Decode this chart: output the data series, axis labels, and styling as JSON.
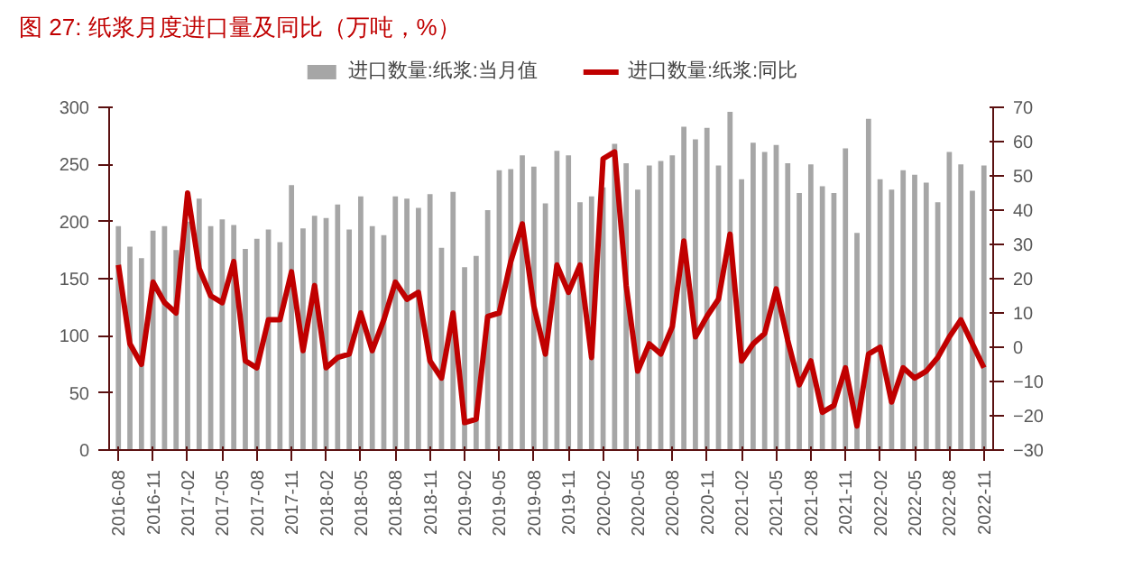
{
  "chart_data": {
    "type": "bar",
    "title": "图 27:   纸浆月度进口量及同比（万吨，%）",
    "categories": [
      "2016-08",
      null,
      null,
      "2016-11",
      null,
      null,
      "2017-02",
      null,
      null,
      "2017-05",
      null,
      null,
      "2017-08",
      null,
      null,
      "2017-11",
      null,
      null,
      "2018-02",
      null,
      null,
      "2018-05",
      null,
      null,
      "2018-08",
      null,
      null,
      "2018-11",
      null,
      null,
      "2019-02",
      null,
      null,
      "2019-05",
      null,
      null,
      "2019-08",
      null,
      null,
      "2019-11",
      null,
      null,
      "2020-02",
      null,
      null,
      "2020-05",
      null,
      null,
      "2020-08",
      null,
      null,
      "2020-11",
      null,
      null,
      "2021-02",
      null,
      null,
      "2021-05",
      null,
      null,
      "2021-08",
      null,
      null,
      "2021-11",
      null,
      null,
      "2022-02",
      null,
      null,
      "2022-05",
      null,
      null,
      "2022-08",
      null,
      null,
      "2022-11"
    ],
    "series": [
      {
        "name": "进口数量:纸浆:当月值",
        "color": "#a6a6a6",
        "values": [
          196,
          178,
          168,
          192,
          196,
          175,
          200,
          220,
          196,
          202,
          197,
          176,
          185,
          193,
          182,
          232,
          194,
          205,
          203,
          215,
          193,
          222,
          196,
          188,
          222,
          220,
          212,
          224,
          177,
          226,
          160,
          170,
          210,
          245,
          246,
          258,
          248,
          216,
          262,
          258,
          217,
          222,
          230,
          268,
          251,
          228,
          249,
          253,
          258,
          283,
          272,
          282,
          249,
          296,
          237,
          269,
          261,
          267,
          251,
          225,
          250,
          231,
          225,
          264,
          190,
          290,
          237,
          228,
          245,
          241,
          234,
          217,
          261,
          250,
          227,
          249
        ]
      },
      {
        "name": "进口数量:纸浆:同比",
        "type": "line",
        "axis": "y2",
        "color": "#c00000",
        "values": [
          24,
          1,
          -5,
          19,
          13,
          10,
          45,
          23,
          15,
          13,
          25,
          -4,
          -6,
          8,
          8,
          22,
          -1,
          18,
          -6,
          -3,
          -2,
          10,
          -1,
          8,
          19,
          14,
          16,
          -4,
          -9,
          10,
          -22,
          -21,
          9,
          10,
          25,
          36,
          12,
          -2,
          24,
          16,
          24,
          -3,
          55,
          57,
          18,
          -7,
          1,
          -2,
          6,
          31,
          3,
          9,
          14,
          33,
          -4,
          1,
          4,
          17,
          2,
          -11,
          -4,
          -19,
          -17,
          -6,
          -23,
          -2,
          0,
          -16,
          -6,
          -9,
          -7,
          -3,
          3,
          8,
          1,
          -6
        ]
      }
    ],
    "ylim": [
      0,
      300
    ],
    "yticks": [
      0,
      50,
      100,
      150,
      200,
      250,
      300
    ],
    "y2lim": [
      -30,
      70
    ],
    "y2ticks": [
      -30,
      -20,
      -10,
      0,
      10,
      20,
      30,
      40,
      50,
      60,
      70
    ],
    "legend": "top"
  }
}
